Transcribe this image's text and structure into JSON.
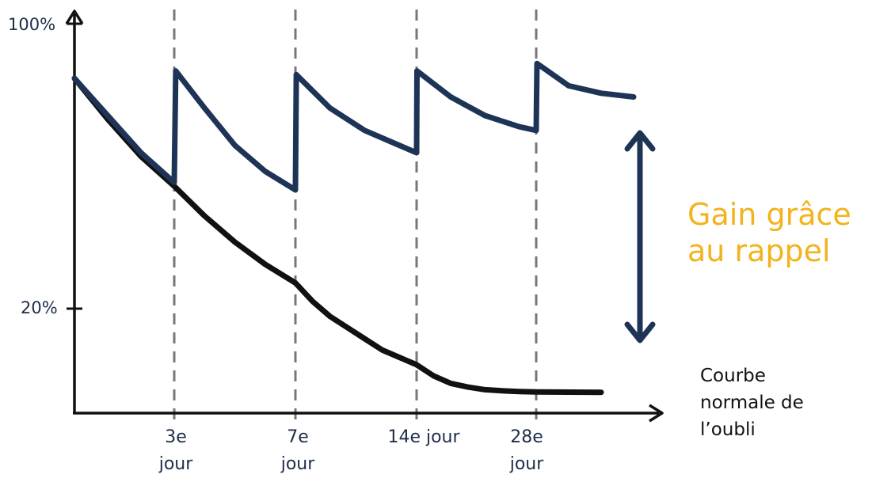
{
  "chart_data": {
    "type": "line",
    "y_ticks": [
      "100%",
      "20%"
    ],
    "x_ticks": [
      {
        "day": 3,
        "label": "3e\njour"
      },
      {
        "day": 7,
        "label": "7e\njour"
      },
      {
        "day": 14,
        "label": "14e jour"
      },
      {
        "day": 28,
        "label": "28e\njour"
      }
    ],
    "reminder_days": [
      3,
      7,
      14,
      28
    ],
    "series": [
      {
        "key": "normal_forgetting",
        "color": "#111111",
        "points": [
          [
            0,
            90
          ],
          [
            1,
            79
          ],
          [
            2,
            69
          ],
          [
            3,
            61
          ],
          [
            4,
            53
          ],
          [
            5,
            46
          ],
          [
            6,
            40
          ],
          [
            7,
            35
          ],
          [
            8,
            30
          ],
          [
            9,
            26
          ],
          [
            10,
            23
          ],
          [
            11,
            20
          ],
          [
            12,
            17
          ],
          [
            13,
            15
          ],
          [
            14,
            13
          ],
          [
            16,
            10
          ],
          [
            18,
            8
          ],
          [
            20,
            7
          ],
          [
            22,
            6.3
          ],
          [
            24,
            6
          ],
          [
            26,
            5.8
          ],
          [
            28,
            5.7
          ],
          [
            32,
            5.6
          ]
        ]
      },
      {
        "key": "with_reminders",
        "color": "#1e3456",
        "points": [
          [
            0,
            90
          ],
          [
            1,
            80
          ],
          [
            2,
            70
          ],
          [
            3,
            62
          ],
          [
            3.05,
            92
          ],
          [
            4,
            82
          ],
          [
            5,
            72
          ],
          [
            6,
            65
          ],
          [
            7,
            60
          ],
          [
            7.05,
            91
          ],
          [
            9,
            82
          ],
          [
            11,
            76
          ],
          [
            13,
            72
          ],
          [
            14,
            70
          ],
          [
            14.05,
            92
          ],
          [
            18,
            85
          ],
          [
            22,
            80
          ],
          [
            26,
            77
          ],
          [
            28,
            76
          ],
          [
            28.05,
            94
          ],
          [
            30,
            88
          ],
          [
            32,
            86
          ],
          [
            34,
            85
          ]
        ]
      }
    ],
    "annotations": {
      "gain_label": "Gain grâce\nau rappel",
      "normal_curve_label": "Courbe\nnormale de\nl’oubli"
    },
    "colors": {
      "axis": "#111111",
      "dashed": "#777777",
      "arrow": "#1e3456",
      "gain_text": "#f2b31c"
    }
  }
}
